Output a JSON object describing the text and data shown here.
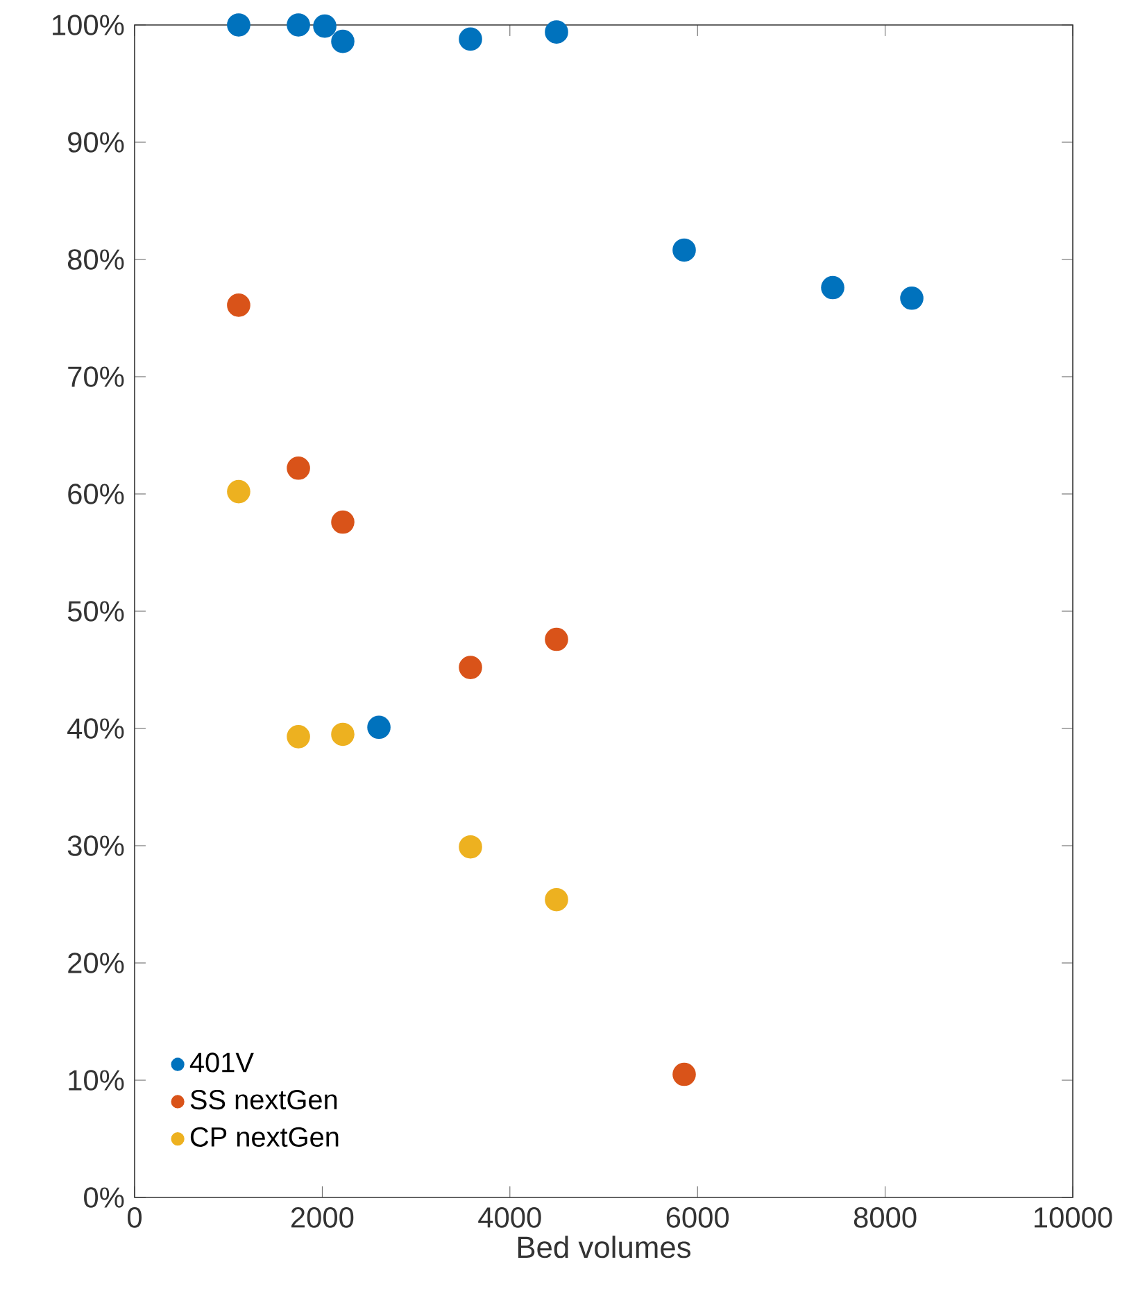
{
  "chart_data": {
    "type": "scatter",
    "xlabel": "Bed volumes",
    "xlim": [
      0,
      10000
    ],
    "xticks": [
      0,
      2000,
      4000,
      6000,
      8000,
      10000
    ],
    "ylim": [
      0,
      100
    ],
    "yticks": [
      {
        "value": 0,
        "label": "0%"
      },
      {
        "value": 10,
        "label": "10%"
      },
      {
        "value": 20,
        "label": "20%"
      },
      {
        "value": 30,
        "label": "30%"
      },
      {
        "value": 40,
        "label": "40%"
      },
      {
        "value": 50,
        "label": "50%"
      },
      {
        "value": 60,
        "label": "60%"
      },
      {
        "value": 70,
        "label": "70%"
      },
      {
        "value": 80,
        "label": "80%"
      },
      {
        "value": 90,
        "label": "90%"
      },
      {
        "value": 100,
        "label": "100%"
      }
    ],
    "marker": "circle",
    "legend": "bottom left",
    "grid": false,
    "series": [
      {
        "name": "401V",
        "color": "#0072bd",
        "x": [
          1109,
          1746,
          2027,
          2219,
          2604,
          3580,
          4497,
          5858,
          7441,
          8284
        ],
        "values": [
          100,
          100,
          99.9,
          98.6,
          40.1,
          98.8,
          99.4,
          80.8,
          77.6,
          76.7
        ]
      },
      {
        "name": "SS nextGen",
        "color": "#d95319",
        "x": [
          1109,
          1746,
          2219,
          3580,
          4497,
          5858
        ],
        "values": [
          76.1,
          62.2,
          57.6,
          45.2,
          47.6,
          10.5
        ]
      },
      {
        "name": "CP nextGen",
        "color": "#edb120",
        "x": [
          1109,
          1746,
          2219,
          3580,
          4497
        ],
        "values": [
          60.2,
          39.3,
          39.5,
          29.9,
          25.4
        ]
      }
    ]
  }
}
